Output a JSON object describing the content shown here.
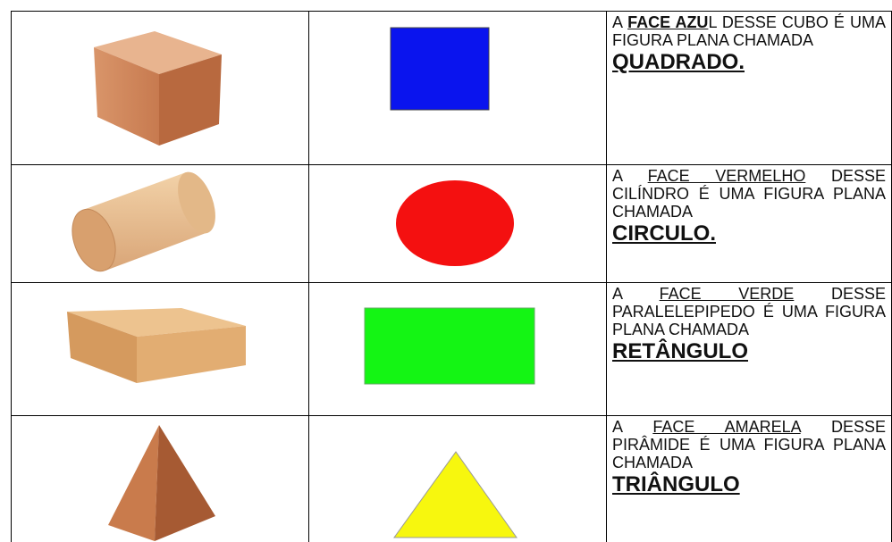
{
  "table": {
    "rows": [
      [
        "A",
        "FACE AZU",
        "L DESSE CUBO É UMA FIGURA PLANA CHAMADA",
        "QUADRADO."
      ],
      [
        "A",
        "FACE VERMELHO",
        "DESSE CILÍNDRO É UMA FIGURA PLANA CHAMADA",
        "CIRCULO."
      ],
      [
        "A",
        "FACE VERDE",
        "DESSE PARALELEPIPEDO É UMA FIGURA PLANA CHAMADA",
        "RETÂNGULO"
      ],
      [
        "A",
        "FACE AMARELA",
        "DESSE PIRÂMIDE É UMA FIGURA PLANA CHAMADA",
        "TRIÂNGULO"
      ]
    ]
  }
}
